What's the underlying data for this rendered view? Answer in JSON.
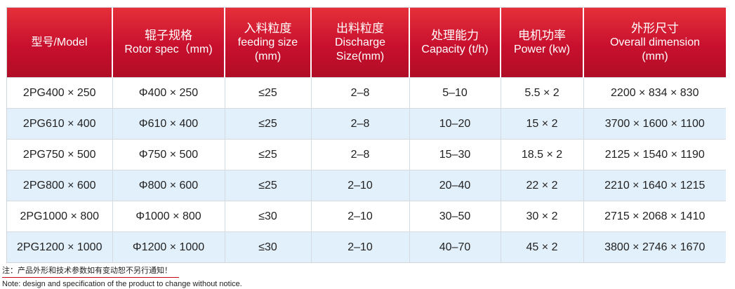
{
  "table": {
    "headers": [
      {
        "lines": [
          "型号/Model"
        ]
      },
      {
        "lines": [
          "辊子规格",
          "Rotor spec（mm)"
        ]
      },
      {
        "lines": [
          "入料粒度",
          "feeding size",
          "(mm)"
        ]
      },
      {
        "lines": [
          "出料粒度",
          "Discharge",
          "Size(mm)"
        ]
      },
      {
        "lines": [
          "处理能力",
          "Capacity (t/h)"
        ]
      },
      {
        "lines": [
          "电机功率",
          "Power (kw)"
        ]
      },
      {
        "lines": [
          "外形尺寸",
          "Overall dimension",
          "(mm)"
        ]
      }
    ],
    "rows": [
      [
        "2PG400 × 250",
        "Φ400 × 250",
        "≤25",
        "2–8",
        "5–10",
        "5.5 × 2",
        "2200 × 834 × 830"
      ],
      [
        "2PG610 × 400",
        "Φ610 × 400",
        "≤25",
        "2–8",
        "10–20",
        "15 × 2",
        "3700 × 1600 × 1100"
      ],
      [
        "2PG750 × 500",
        "Φ750 × 500",
        "≤25",
        "2–8",
        "15–30",
        "18.5 × 2",
        "2125 × 1540 × 1190"
      ],
      [
        "2PG800 × 600",
        "Φ800 × 600",
        "≤25",
        "2–10",
        "20–40",
        "22 × 2",
        "2210 × 1640 × 1215"
      ],
      [
        "2PG1000 × 800",
        "Φ1000 × 800",
        "≤30",
        "2–10",
        "30–50",
        "30 × 2",
        "2715 × 2068 × 1410"
      ],
      [
        "2PG1200 × 1000",
        "Φ1200 × 1000",
        "≤30",
        "2–10",
        "40–70",
        "45 × 2",
        "3800 × 2746 × 1670"
      ]
    ]
  },
  "notes": {
    "cn": "注：产品外形和技术参数如有变动恕不另行通知！",
    "en": "Note: design and specification of the product to change without notice."
  },
  "colors": {
    "header_bg": "#c8102e",
    "row_alt_bg": "#e2f0fb",
    "note_underline": "#d0021b"
  }
}
